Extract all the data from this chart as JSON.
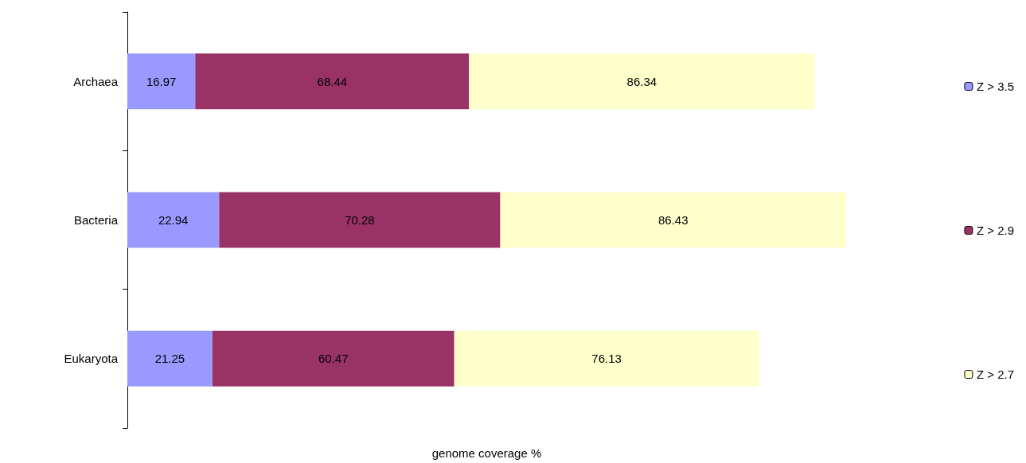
{
  "chart_data": {
    "type": "bar",
    "orientation": "horizontal",
    "stacked": true,
    "data_labels": true,
    "tick_labels": "y",
    "legend": "right",
    "xlabel": "genome coverage %",
    "categories": [
      "Archaea",
      "Bacteria",
      "Eukaryota"
    ],
    "series": [
      {
        "name": "Z > 3.5",
        "color": "#9999ff",
        "values": [
          16.97,
          22.94,
          21.25
        ]
      },
      {
        "name": "Z > 2.9",
        "color": "#993366",
        "values": [
          68.44,
          70.28,
          60.47
        ]
      },
      {
        "name": "Z > 2.7",
        "color": "#ffffcc",
        "values": [
          86.34,
          86.43,
          76.13
        ]
      }
    ]
  }
}
